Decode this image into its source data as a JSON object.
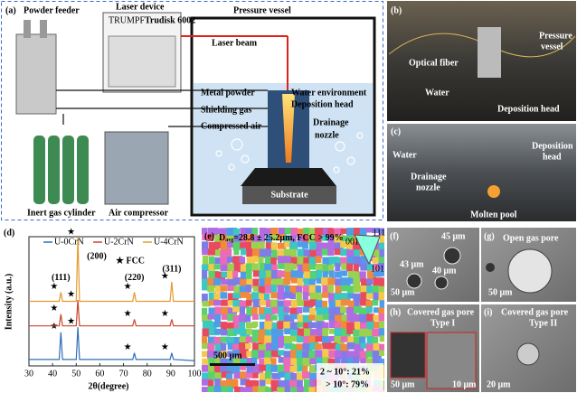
{
  "panel_a": {
    "tag": "(a)",
    "powder_feeder": "Powder feeder",
    "laser_device": "Laser device",
    "brand": "TRUMPF",
    "model": "Trudisk 6002",
    "pressure_vessel": "Pressure vessel",
    "laser_beam": "Laser beam",
    "water_environment": "Water environment",
    "deposition_head": "Deposition head",
    "metal_powder": "Metal powder",
    "shielding_gas": "Shielding gas",
    "compressed_air": "Compressed air",
    "drainage": "Drainage",
    "nozzle": "nozzle",
    "substrate": "Substrate",
    "inert_gas": "Inert gas cylinder",
    "air_compressor": "Air compressor"
  },
  "panel_b": {
    "tag": "(b)",
    "pressure": "Pressure",
    "vessel": "vessel",
    "optical_fiber": "Optical fiber",
    "water": "Water",
    "deposition_head": "Deposition head"
  },
  "panel_c": {
    "tag": "(c)",
    "water": "Water",
    "deposition": "Deposition",
    "head": "head",
    "drainage": "Drainage",
    "nozzle": "nozzle",
    "molten_pool": "Molten pool"
  },
  "chart_data": {
    "type": "line",
    "tag": "(d)",
    "xlabel": "2θ(degree)",
    "ylabel": "Intensity (a.u.)",
    "legend": "top",
    "star": "★",
    "fcc_label": "★ FCC",
    "x": [
      30,
      42.8,
      43.5,
      44.2,
      50,
      50.7,
      51.4,
      73.9,
      74.6,
      75.3,
      89.7,
      90.4,
      91.1,
      100
    ],
    "series": [
      {
        "name": "U-0CrN",
        "color": "#2f6db5",
        "values": [
          5,
          5,
          26,
          5,
          5,
          30,
          5,
          5,
          10,
          5,
          5,
          10,
          5,
          4
        ]
      },
      {
        "name": "U-2CrN",
        "color": "#c9452c",
        "values": [
          31,
          31,
          40,
          31,
          31,
          51,
          31,
          31,
          36,
          31,
          31,
          36,
          31,
          31
        ]
      },
      {
        "name": "U-4CrN",
        "color": "#e39b2d",
        "values": [
          50,
          50,
          57,
          50,
          50,
          99,
          50,
          50,
          57,
          50,
          50,
          65,
          50,
          50
        ]
      }
    ],
    "peak_labels": [
      "(111)",
      "(200)",
      "(220)",
      "(311)"
    ],
    "xlim": [
      30,
      100
    ],
    "xticks": [
      30,
      40,
      50,
      60,
      70,
      80,
      90,
      100
    ],
    "ylim": [
      0,
      100
    ]
  },
  "panel_e": {
    "tag": "(e)",
    "d_symbol": "D",
    "d_sub": "avg",
    "stats": "=28.8 ± 25.2μm, FCC > 99%",
    "ipf_111": "111",
    "ipf_001": "001",
    "ipf_101": "101",
    "scale": "500 μm",
    "low_angle": "2 ~ 10°: 21%",
    "high_angle": "> 10°: 79%"
  },
  "panel_f": {
    "tag": "(f)",
    "d1": "45 μm",
    "d2": "43 μm",
    "d3": "40 μm",
    "scale": "50 μm"
  },
  "panel_g": {
    "tag": "(g)",
    "title": "Open gas pore",
    "scale": "50 μm"
  },
  "panel_h": {
    "tag": "(h)",
    "title": "Covered gas pore",
    "type": "Type I",
    "scale": "50 μm",
    "scale_inset": "10 μm"
  },
  "panel_i": {
    "tag": "(i)",
    "title": "Covered gas pore",
    "type": "Type II",
    "scale": "20 μm"
  }
}
